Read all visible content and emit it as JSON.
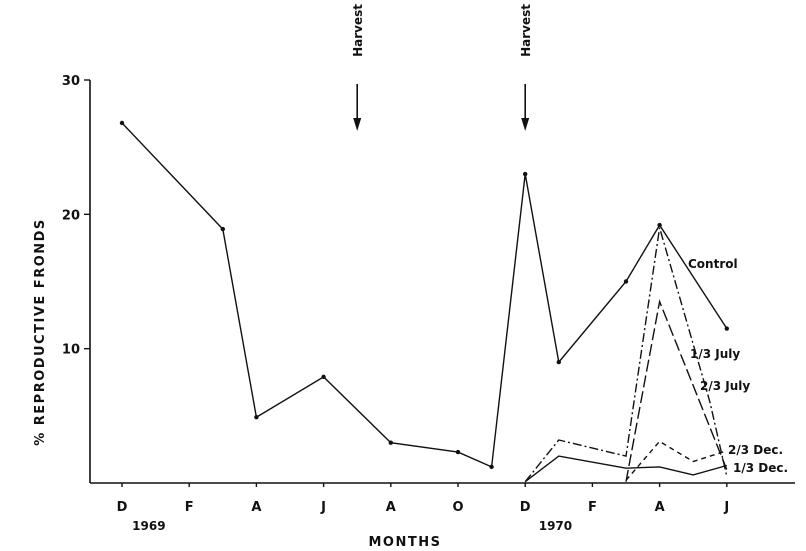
{
  "chart_data": {
    "type": "line",
    "title": "",
    "xlabel": "MONTHS",
    "ylabel": "% REPRODUCTIVE FRONDS",
    "ylim": [
      0,
      30
    ],
    "yticks": [
      {
        "value": 10,
        "label": "10"
      },
      {
        "value": 20,
        "label": "20"
      },
      {
        "value": 30,
        "label": "30"
      }
    ],
    "xlim": [
      0,
      19
    ],
    "xticks": [
      {
        "x": 0,
        "label": "D"
      },
      {
        "x": 2,
        "label": "F"
      },
      {
        "x": 4,
        "label": "A"
      },
      {
        "x": 6,
        "label": "J"
      },
      {
        "x": 8,
        "label": "A"
      },
      {
        "x": 10,
        "label": "O"
      },
      {
        "x": 12,
        "label": "D"
      },
      {
        "x": 14,
        "label": "F"
      },
      {
        "x": 16,
        "label": "A"
      },
      {
        "x": 18,
        "label": "J"
      }
    ],
    "year_labels": [
      {
        "x": 0.8,
        "label": "1969"
      },
      {
        "x": 12.9,
        "label": "1970"
      }
    ],
    "annotations": [
      {
        "x": 7,
        "label": "Harvest"
      },
      {
        "x": 12,
        "label": "Harvest"
      }
    ],
    "series": [
      {
        "name": "Control",
        "style": "solid",
        "markers": true,
        "points": [
          [
            0,
            26.8
          ],
          [
            3,
            18.9
          ],
          [
            4,
            4.9
          ],
          [
            6,
            7.9
          ],
          [
            8,
            3.0
          ],
          [
            10,
            2.3
          ],
          [
            11,
            1.2
          ],
          [
            12,
            23.0
          ],
          [
            13,
            9.0
          ],
          [
            15,
            15.0
          ],
          [
            16,
            19.2
          ],
          [
            18,
            11.5
          ]
        ]
      },
      {
        "name": "1/3 July",
        "style": "dashdot",
        "markers": false,
        "points": [
          [
            12,
            0.1
          ],
          [
            13,
            3.2
          ],
          [
            15,
            2.0
          ],
          [
            16,
            19.0
          ],
          [
            17.5,
            6.0
          ],
          [
            18,
            0.5
          ]
        ]
      },
      {
        "name": "2/3 July",
        "style": "longdash",
        "markers": false,
        "points": [
          [
            15,
            0.1
          ],
          [
            16,
            13.5
          ],
          [
            18,
            1.0
          ]
        ]
      },
      {
        "name": "2/3 Dec.",
        "style": "dashed",
        "markers": false,
        "points": [
          [
            15,
            0.2
          ],
          [
            16,
            3.1
          ],
          [
            17,
            1.6
          ],
          [
            18,
            2.4
          ]
        ]
      },
      {
        "name": "1/3 Dec.",
        "style": "solid",
        "markers": false,
        "points": [
          [
            12,
            0.1
          ],
          [
            13,
            2.0
          ],
          [
            15,
            1.1
          ],
          [
            16,
            1.2
          ],
          [
            17,
            0.6
          ],
          [
            18,
            1.3
          ]
        ]
      }
    ],
    "series_labels": [
      {
        "series": "Control",
        "label": "Control"
      },
      {
        "series": "1/3 July",
        "label": "1/3 July"
      },
      {
        "series": "2/3 July",
        "label": "2/3 July"
      },
      {
        "series": "2/3 Dec.",
        "label": "2/3 Dec."
      },
      {
        "series": "1/3 Dec.",
        "label": "1/3 Dec."
      }
    ],
    "grid": false,
    "legend": "none"
  }
}
